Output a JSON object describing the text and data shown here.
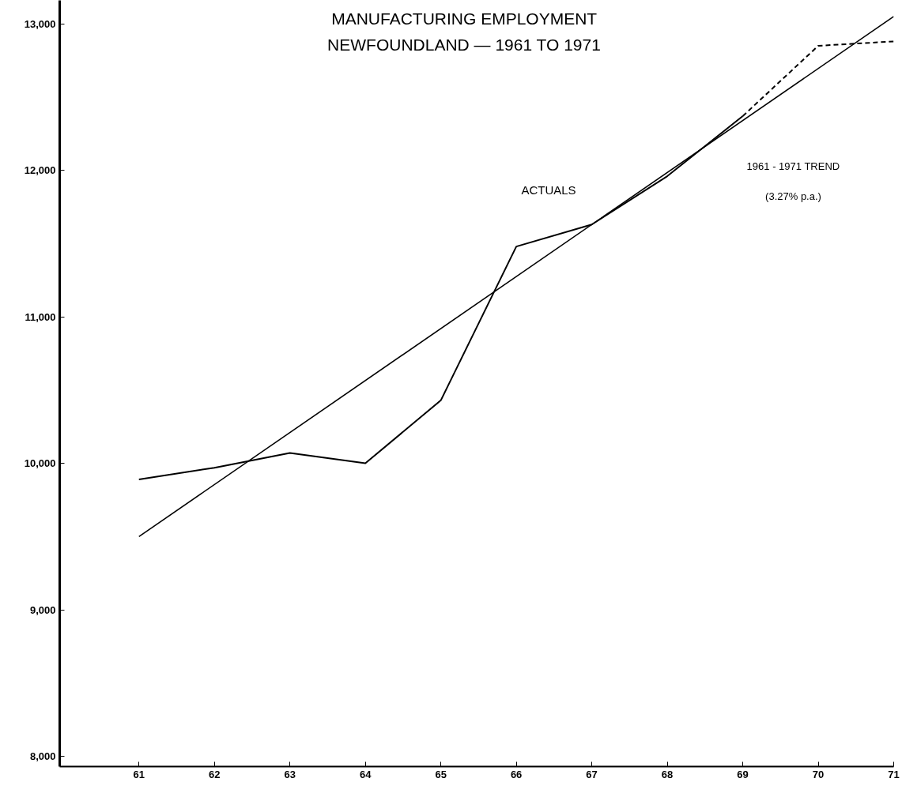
{
  "chart_data": {
    "type": "line",
    "title": "MANUFACTURING EMPLOYMENT",
    "subtitle": "NEWFOUNDLAND — 1961 TO 1971",
    "series": [
      {
        "name": "ACTUALS",
        "color": "#000000",
        "x": [
          61,
          62,
          63,
          64,
          65,
          66,
          67,
          68,
          69
        ],
        "values": [
          9890,
          9970,
          10070,
          10000,
          10430,
          11480,
          11630,
          11960,
          12370
        ],
        "line_style": "solid"
      },
      {
        "color": "#000000",
        "x": [
          69,
          70,
          71
        ],
        "values": [
          12370,
          12850,
          12880
        ],
        "line_style": "dashed"
      },
      {
        "color": "#000000",
        "x": [
          61,
          71
        ],
        "values": [
          9500,
          13050
        ],
        "line_style": "solid"
      }
    ],
    "annotations": [
      "1961 - 1971 TREND",
      "(3.27% p.a.)"
    ],
    "xlim": [
      59.95,
      71
    ],
    "ylim": [
      7930,
      13160
    ],
    "xticks": [
      61,
      62,
      63,
      64,
      65,
      66,
      67,
      68,
      69,
      70,
      71
    ],
    "yticks": [
      {
        "value": 8000,
        "label": "8,000"
      },
      {
        "value": 9000,
        "label": "9,000"
      },
      {
        "value": 10000,
        "label": "10,000"
      },
      {
        "value": 11000,
        "label": "11,000"
      },
      {
        "value": 12000,
        "label": "12,000"
      },
      {
        "value": 13000,
        "label": "13,000"
      }
    ],
    "grid": false
  }
}
